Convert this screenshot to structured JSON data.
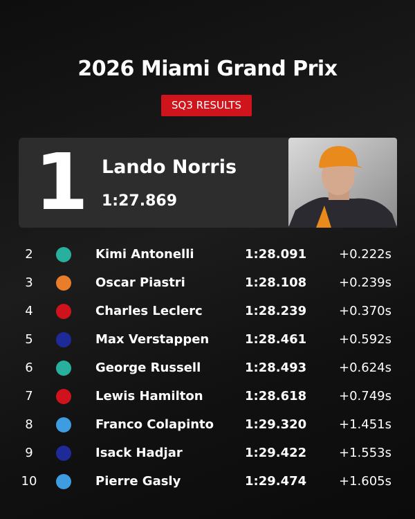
{
  "header": {
    "title": "2026 Miami Grand Prix",
    "badge": "SQ3 RESULTS"
  },
  "winner": {
    "position": "1",
    "name": "Lando Norris",
    "time": "1:27.869"
  },
  "table": {
    "rows": [
      {
        "position": "2",
        "color": "#27b09d",
        "name": "Kimi Antonelli",
        "time": "1:28.091",
        "gap": "+0.222s"
      },
      {
        "position": "3",
        "color": "#e97d2a",
        "name": "Oscar Piastri",
        "time": "1:28.108",
        "gap": "+0.239s"
      },
      {
        "position": "4",
        "color": "#cf121c",
        "name": "Charles Leclerc",
        "time": "1:28.239",
        "gap": "+0.370s"
      },
      {
        "position": "5",
        "color": "#1f2a99",
        "name": "Max Verstappen",
        "time": "1:28.461",
        "gap": "+0.592s"
      },
      {
        "position": "6",
        "color": "#27b09d",
        "name": "George Russell",
        "time": "1:28.493",
        "gap": "+0.624s"
      },
      {
        "position": "7",
        "color": "#cf121c",
        "name": "Lewis Hamilton",
        "time": "1:28.618",
        "gap": "+0.749s"
      },
      {
        "position": "8",
        "color": "#3e9ce0",
        "name": "Franco Colapinto",
        "time": "1:29.320",
        "gap": "+1.451s"
      },
      {
        "position": "9",
        "color": "#1f2a99",
        "name": "Isack Hadjar",
        "time": "1:29.422",
        "gap": "+1.553s"
      },
      {
        "position": "10",
        "color": "#3e9ce0",
        "name": "Pierre Gasly",
        "time": "1:29.474",
        "gap": "+1.605s"
      }
    ]
  }
}
